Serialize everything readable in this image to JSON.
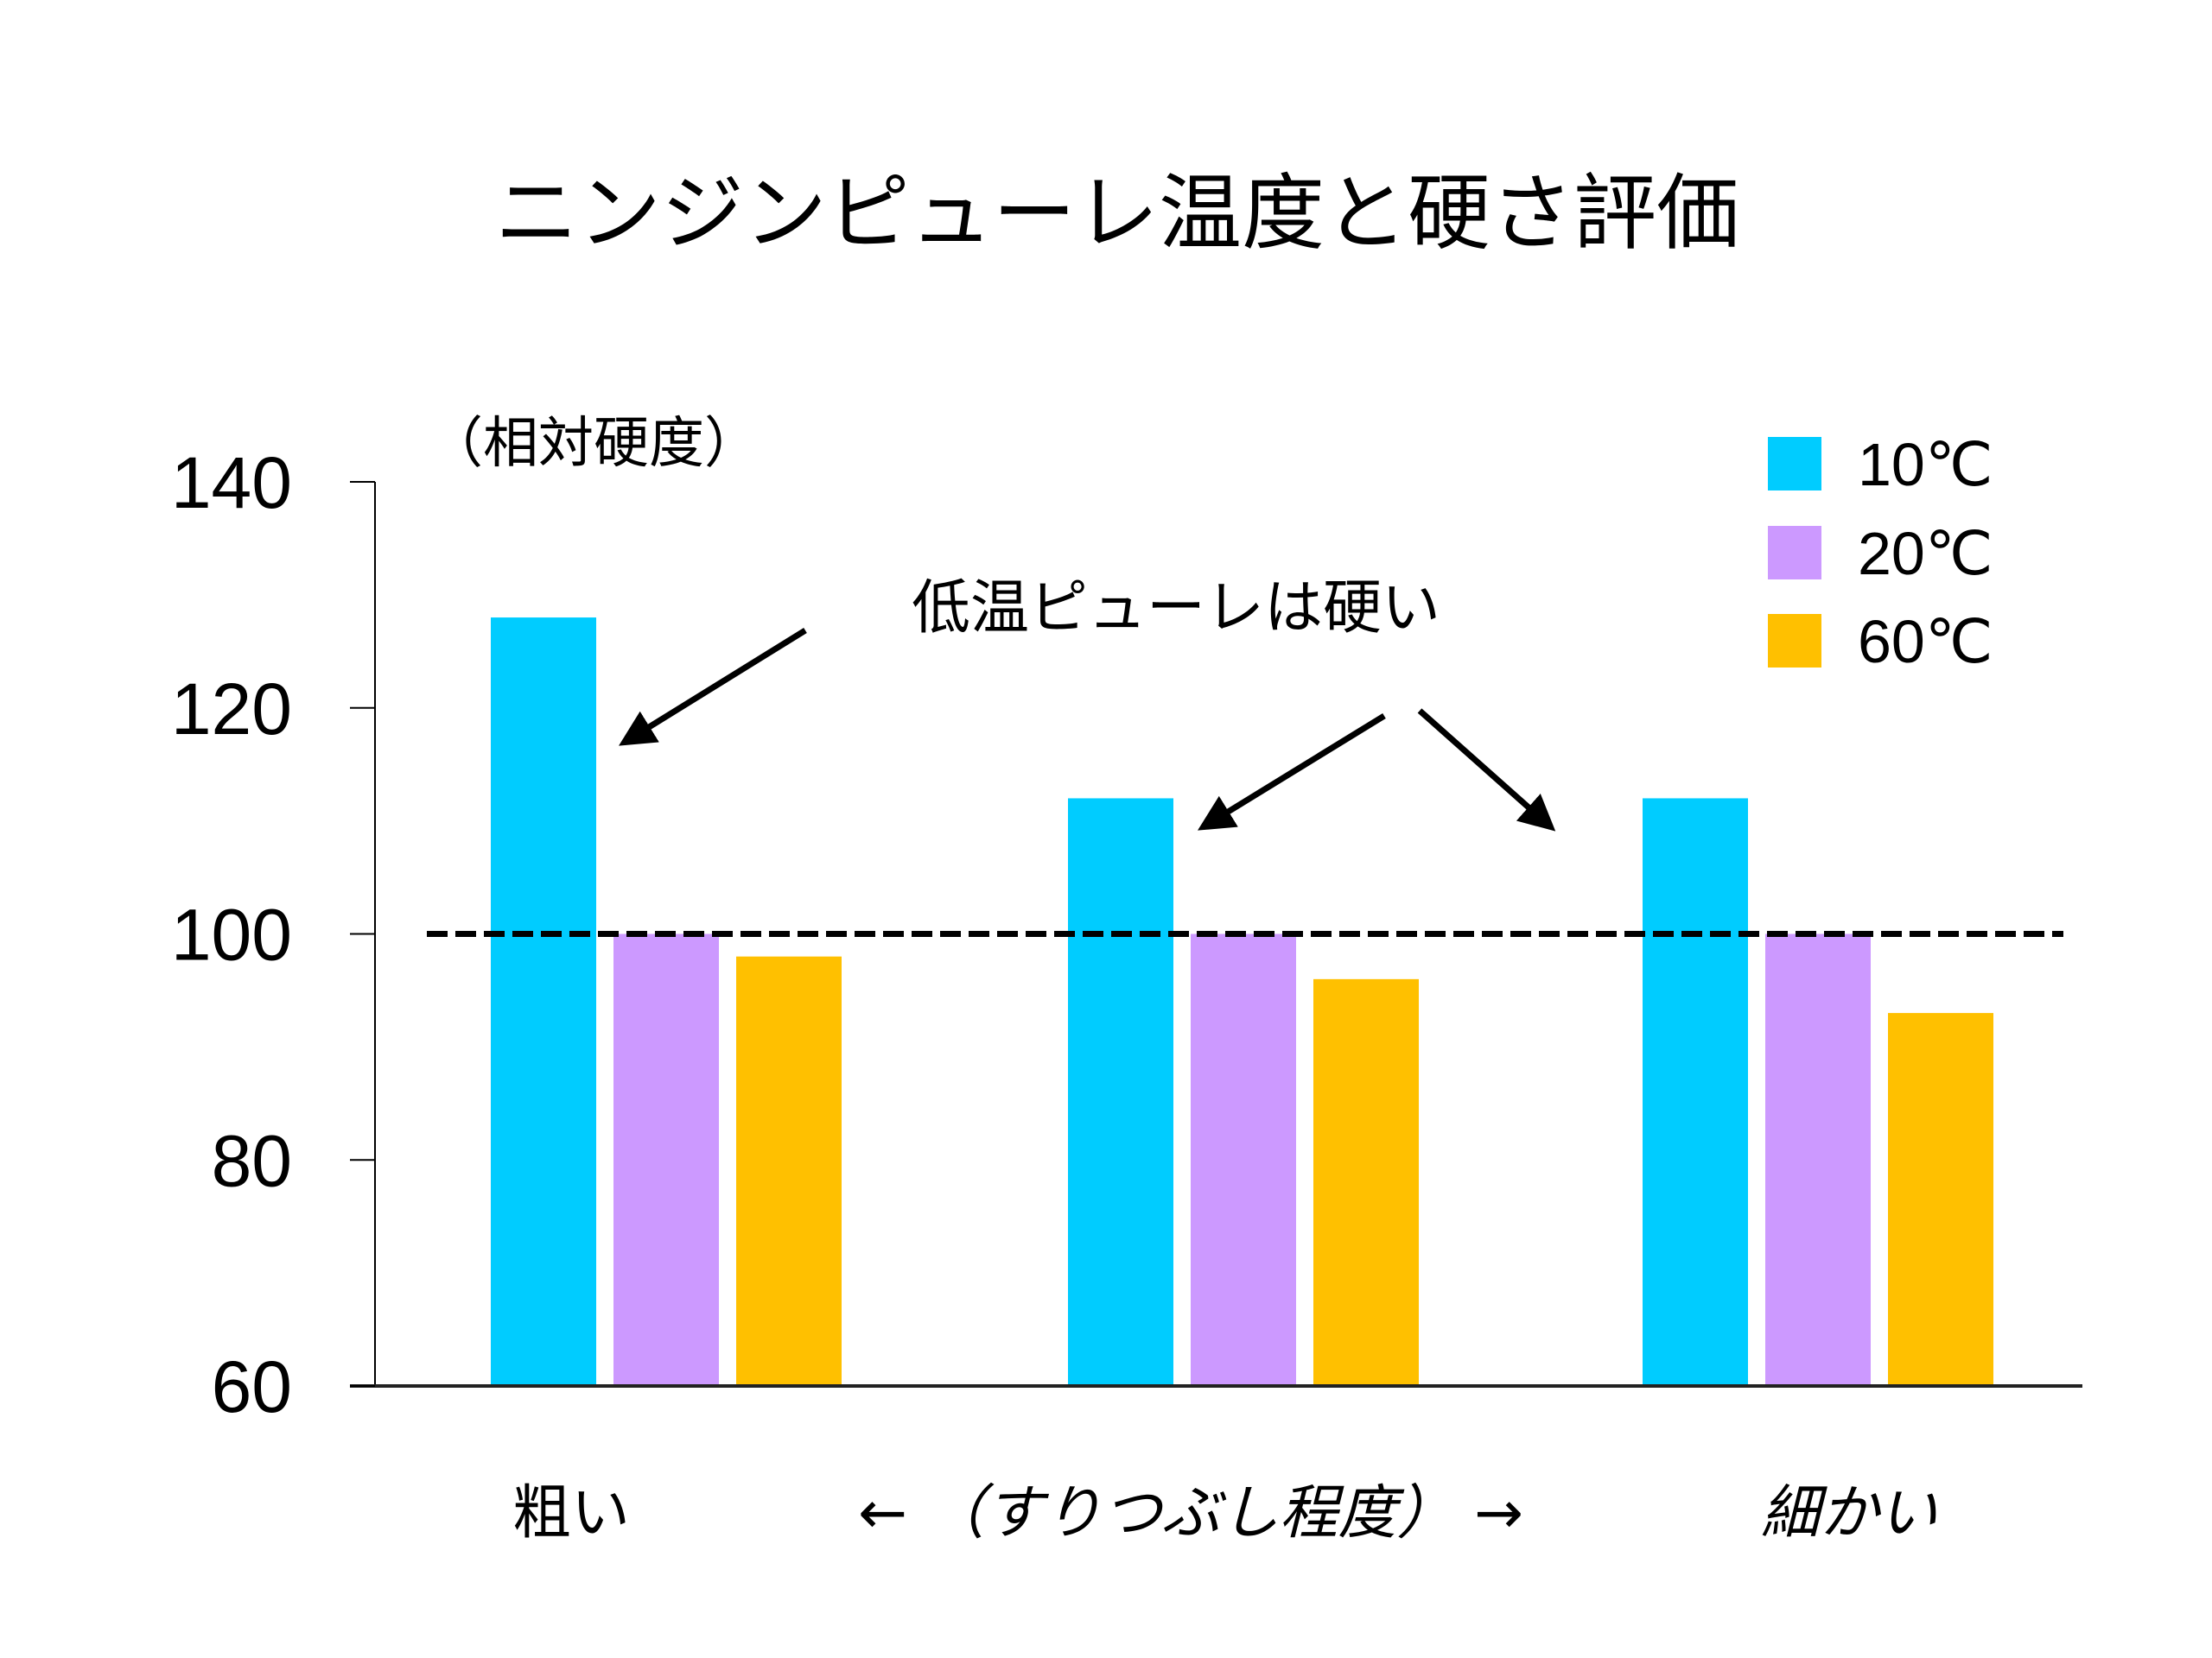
{
  "chart_data": {
    "type": "bar",
    "title": "ニンジンピューレ温度と硬さ評価",
    "ylabel": "（相対硬度）",
    "xlabel": "← （すりつぶし程度） →",
    "ylim": [
      60,
      140
    ],
    "yticks": [
      60,
      80,
      100,
      120,
      140
    ],
    "grid": false,
    "legend_position": "top-right",
    "categories": [
      "粗い",
      "",
      "細かい"
    ],
    "x_axis_labels": {
      "left": "粗い",
      "center": "← （すりつぶし程度） →",
      "right": "細かい"
    },
    "series": [
      {
        "name": "10℃",
        "color": "#00CCFF",
        "values": [
          128,
          112,
          112
        ]
      },
      {
        "name": "20℃",
        "color": "#CC99FF",
        "values": [
          100,
          100,
          100
        ]
      },
      {
        "name": "60℃",
        "color": "#FFC000",
        "values": [
          98,
          96,
          93
        ]
      }
    ],
    "reference_line": {
      "value": 100,
      "style": "dashed"
    },
    "annotations": [
      {
        "text": "低温ピューレは硬い",
        "arrows_point_to": [
          "10℃ bar, 粗い",
          "10℃ bar, middle",
          "10℃ bar, 細かい"
        ]
      }
    ]
  }
}
